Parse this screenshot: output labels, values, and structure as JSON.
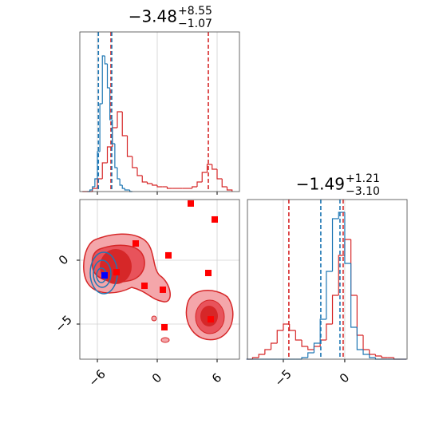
{
  "chart_data": [
    {
      "type": "histogram",
      "title": {
        "value": "−3.48",
        "upper": "+8.55",
        "lower": "−1.07"
      },
      "xlim": [
        -7.76,
        8.24
      ],
      "ylim": [
        0,
        100
      ],
      "xticks": [
        -6,
        0,
        6
      ],
      "grid": true,
      "series": [
        {
          "color": "#d62728",
          "bins": [
            -7.5,
            -7,
            -6.5,
            -6,
            -5.5,
            -5,
            -4.5,
            -4,
            -3.5,
            -3,
            -2.5,
            -2,
            -1.5,
            -1,
            -0.5,
            0,
            0.5,
            1,
            1.5,
            2,
            2.5,
            3,
            3.5,
            4,
            4.5,
            5,
            5.5,
            6,
            6.5,
            7,
            7.5
          ],
          "values": [
            0,
            0,
            2,
            8,
            18,
            28,
            40,
            50,
            35,
            22,
            15,
            10,
            6,
            5,
            4,
            3,
            3,
            2,
            2,
            2,
            2,
            2,
            3,
            6,
            12,
            17,
            14,
            8,
            3,
            1
          ]
        },
        {
          "color": "#1f77b4",
          "bins": [
            -7,
            -6.75,
            -6.5,
            -6.25,
            -6,
            -5.75,
            -5.5,
            -5.25,
            -5,
            -4.75,
            -4.5,
            -4.25,
            -4,
            -3.75,
            -3.5,
            -3.25,
            -3,
            -2.75,
            -2.5
          ],
          "values": [
            0,
            1,
            3,
            8,
            25,
            55,
            85,
            80,
            65,
            45,
            30,
            15,
            8,
            4,
            2,
            1,
            1,
            0
          ]
        }
      ],
      "vlines": [
        {
          "color": "#d62728",
          "values": [
            -4.64,
            5.12
          ]
        },
        {
          "color": "#1f77b4",
          "values": [
            -5.9,
            -4.56
          ]
        }
      ]
    },
    {
      "type": "scatter",
      "xlim": [
        -7.76,
        8.24
      ],
      "ylim": [
        -7.75,
        4.75
      ],
      "grid": true,
      "xticks": [
        {
          "value": -6,
          "label": "−6"
        },
        0,
        6
      ],
      "yticks": [
        {
          "value": -5,
          "label": "−5"
        },
        0
      ],
      "series": [
        {
          "color": "#ff0000",
          "x": [
            3.36,
            5.76,
            -2.16,
            1.12,
            -4.08,
            5.12,
            -1.28,
            0.56,
            0.72,
            5.36
          ],
          "y": [
            4.44,
            3.19,
            1.31,
            0.38,
            -0.94,
            -1.0,
            -2.0,
            -2.31,
            -5.25,
            -4.63
          ]
        },
        {
          "color": "#0000ff",
          "x": [
            -5.28
          ],
          "y": [
            -1.19
          ]
        }
      ]
    },
    {
      "type": "histogram",
      "title": {
        "value": "−1.49",
        "upper": "+1.21",
        "lower": "−3.10"
      },
      "xlim": [
        -7.92,
        5.07
      ],
      "ylim": [
        0,
        100
      ],
      "grid": true,
      "xticks": [
        {
          "value": -5,
          "label": "−5"
        },
        0
      ],
      "series": [
        {
          "color": "#d62728",
          "bins": [
            -8,
            -7.5,
            -7,
            -6.5,
            -6,
            -5.5,
            -5,
            -4.5,
            -4,
            -3.5,
            -3,
            -2.5,
            -2,
            -1.5,
            -1,
            -0.5,
            0,
            0.5,
            1,
            1.5,
            2,
            2.5,
            3,
            3.5,
            4,
            4.5,
            5
          ],
          "values": [
            0,
            1,
            3,
            6,
            10,
            18,
            22,
            18,
            12,
            8,
            6,
            8,
            12,
            22,
            40,
            65,
            75,
            40,
            15,
            6,
            3,
            2,
            1,
            1,
            0,
            0
          ]
        },
        {
          "color": "#1f77b4",
          "bins": [
            -8,
            -7.5,
            -7,
            -6.5,
            -6,
            -5.5,
            -5,
            -4.5,
            -4,
            -3.5,
            -3,
            -2.5,
            -2,
            -1.5,
            -1,
            -0.5,
            0,
            0.5,
            1,
            1.5,
            2,
            2.5,
            3,
            3.5,
            4,
            4.5,
            5
          ],
          "values": [
            0,
            0,
            0,
            0,
            0,
            0,
            0,
            0,
            0,
            1,
            4,
            10,
            25,
            55,
            88,
            92,
            60,
            20,
            6,
            3,
            1,
            0,
            0,
            0,
            0,
            0
          ]
        }
      ],
      "vlines": [
        {
          "color": "#d62728",
          "values": [
            -4.55,
            -0.13
          ]
        },
        {
          "color": "#1f77b4",
          "values": [
            -1.95,
            -0.39
          ]
        }
      ]
    }
  ]
}
